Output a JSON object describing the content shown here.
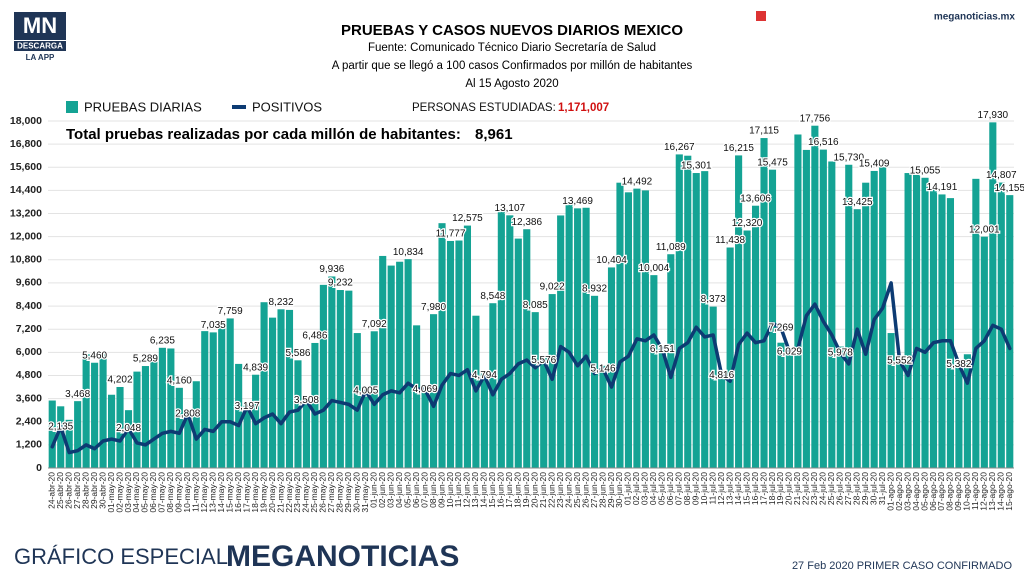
{
  "brand": {
    "logo": "MN",
    "download": "DESCARGA",
    "app": "LA APP",
    "site": "meganoticias.mx"
  },
  "footer": {
    "left": "GRÁFICO ESPECIAL",
    "brand": "MEGANOTICIAS",
    "note": "27 Feb 2020 PRIMER CASO CONFIRMADO"
  },
  "chart_data": {
    "type": "bar_line",
    "title": "PRUEBAS Y CASOS NUEVOS DIARIOS MEXICO",
    "subtitle": [
      "Fuente: Comunicado Técnico Diario Secretaría de Salud",
      "A partir que se llegó a 100 casos Confirmados por millón de habitantes",
      "Al 15 Agosto 2020"
    ],
    "annotations": {
      "studied_label": "PERSONAS ESTUDIADAS:",
      "studied_value": "1,171,007",
      "per_million_label": "Total pruebas realizadas por cada millón de habitantes:",
      "per_million_value": "8,961"
    },
    "categories": [
      "24-abr-20",
      "25-abr-20",
      "26-abr-20",
      "27-abr-20",
      "28-abr-20",
      "29-abr-20",
      "30-abr-20",
      "01-may-20",
      "02-may-20",
      "03-may-20",
      "04-may-20",
      "05-may-20",
      "06-may-20",
      "07-may-20",
      "08-may-20",
      "09-may-20",
      "10-may-20",
      "11-may-20",
      "12-may-20",
      "13-may-20",
      "14-may-20",
      "15-may-20",
      "16-may-20",
      "17-may-20",
      "18-may-20",
      "19-may-20",
      "20-may-20",
      "21-may-20",
      "22-may-20",
      "23-may-20",
      "24-may-20",
      "25-may-20",
      "26-may-20",
      "27-may-20",
      "28-may-20",
      "29-may-20",
      "30-may-20",
      "31-may-20",
      "01-jun-20",
      "02-jun-20",
      "03-jun-20",
      "04-jun-20",
      "05-jun-20",
      "06-jun-20",
      "07-jun-20",
      "08-jun-20",
      "09-jun-20",
      "10-jun-20",
      "11-jun-20",
      "12-jun-20",
      "13-jun-20",
      "14-jun-20",
      "15-jun-20",
      "16-jun-20",
      "17-jun-20",
      "18-jun-20",
      "19-jun-20",
      "20-jun-20",
      "21-jun-20",
      "22-jun-20",
      "23-jun-20",
      "24-jun-20",
      "25-jun-20",
      "26-jun-20",
      "27-jun-20",
      "28-jun-20",
      "29-jun-20",
      "30-jun-20",
      "01-jul-20",
      "02-jul-20",
      "03-jul-20",
      "04-jul-20",
      "05-jul-20",
      "06-jul-20",
      "07-jul-20",
      "08-jul-20",
      "09-jul-20",
      "10-jul-20",
      "11-jul-20",
      "12-jul-20",
      "13-jul-20",
      "14-jul-20",
      "15-jul-20",
      "16-jul-20",
      "17-jul-20",
      "18-jul-20",
      "19-jul-20",
      "20-jul-20",
      "21-jul-20",
      "22-jul-20",
      "23-jul-20",
      "24-jul-20",
      "25-jul-20",
      "26-jul-20",
      "27-jul-20",
      "28-jul-20",
      "29-jul-20",
      "30-jul-20",
      "31-jul-20",
      "01-ago-20",
      "02-ago-20",
      "03-ago-20",
      "04-ago-20",
      "05-ago-20",
      "06-ago-20",
      "07-ago-20",
      "08-ago-20",
      "09-ago-20",
      "10-ago-20",
      "11-ago-20",
      "12-ago-20",
      "13-ago-20",
      "14-ago-20",
      "15-ago-20"
    ],
    "series": [
      {
        "name": "PRUEBAS DIARIAS",
        "kind": "bar",
        "color": "#14a394",
        "values": [
          3500,
          3200,
          2500,
          3468,
          5900,
          5460,
          5900,
          3800,
          4202,
          3000,
          5000,
          5289,
          5800,
          6235,
          6200,
          4160,
          3000,
          4500,
          7100,
          7035,
          7300,
          7759,
          5400,
          3300,
          4839,
          8600,
          7800,
          8232,
          8200,
          5586,
          3300,
          6486,
          9500,
          9936,
          9232,
          9200,
          7000,
          3700,
          7092,
          11000,
          10500,
          10700,
          10834,
          7400,
          4300,
          7980,
          12700,
          11777,
          11800,
          12575,
          7900,
          4900,
          8548,
          13300,
          13107,
          11900,
          12386,
          8085,
          5700,
          9022,
          13100,
          13700,
          13469,
          13500,
          8932,
          5300,
          10404,
          14800,
          14300,
          14492,
          14400,
          10004,
          6300,
          11089,
          16267,
          16200,
          15301,
          15400,
          8373,
          5000,
          11438,
          16215,
          12320,
          13606,
          17115,
          15475,
          6500,
          6200,
          17300,
          16500,
          17756,
          16516,
          15900,
          6300,
          15730,
          13425,
          14800,
          15409,
          15600,
          7000,
          5700,
          15300,
          15200,
          15055,
          14500,
          14191,
          14000,
          5400,
          5900,
          15000,
          12001,
          17930,
          14807,
          14155
        ],
        "value_labels": [
          null,
          null,
          null,
          "3,468",
          null,
          "5,460",
          null,
          null,
          "4,202",
          null,
          null,
          "5,289",
          null,
          "6,235",
          null,
          "4,160",
          null,
          null,
          null,
          "7,035",
          null,
          "7,759",
          null,
          null,
          "4,839",
          null,
          null,
          "8,232",
          null,
          "5,586",
          null,
          "6,486",
          null,
          "9,936",
          "9,232",
          null,
          null,
          null,
          "7,092",
          null,
          null,
          null,
          "10,834",
          null,
          null,
          "7,980",
          null,
          "11,777",
          null,
          "12,575",
          null,
          null,
          "8,548",
          null,
          "13,107",
          null,
          "12,386",
          "8,085",
          null,
          "9,022",
          null,
          null,
          "13,469",
          null,
          "8,932",
          null,
          "10,404",
          null,
          null,
          "14,492",
          null,
          "10,004",
          null,
          "11,089",
          "16,267",
          null,
          "15,301",
          null,
          "8,373",
          null,
          "11,438",
          "16,215",
          "12,320",
          "13,606",
          "17,115",
          "15,475",
          null,
          null,
          null,
          null,
          "17,756",
          "16,516",
          null,
          null,
          "15,730",
          "13,425",
          null,
          "15,409",
          null,
          null,
          null,
          null,
          null,
          "15,055",
          null,
          "14,191",
          null,
          null,
          null,
          null,
          "12,001",
          "17,930",
          "14,807",
          "14,155"
        ]
      },
      {
        "name": "POSITIVOS",
        "kind": "line",
        "color": "#0d3b73",
        "values": [
          1100,
          2135,
          800,
          900,
          1200,
          1000,
          1400,
          1500,
          1400,
          2048,
          1300,
          1200,
          1500,
          1800,
          1900,
          1800,
          2808,
          1500,
          2000,
          1900,
          2400,
          2400,
          2200,
          3197,
          2300,
          2600,
          2800,
          2300,
          2900,
          3000,
          3508,
          2800,
          3000,
          3500,
          3400,
          3300,
          3000,
          4005,
          3300,
          3800,
          4000,
          3900,
          4400,
          4100,
          4069,
          3200,
          4300,
          4900,
          4800,
          5100,
          4000,
          4794,
          3800,
          4600,
          4900,
          5400,
          5600,
          5200,
          5576,
          4600,
          6300,
          6000,
          5300,
          5800,
          4900,
          5146,
          4200,
          5500,
          5800,
          6700,
          6600,
          6900,
          6151,
          4700,
          6200,
          6500,
          7300,
          6800,
          6900,
          4816,
          4500,
          6400,
          7000,
          6500,
          6600,
          7500,
          7269,
          6029,
          6200,
          7900,
          8500,
          7600,
          6900,
          5978,
          5400,
          7200,
          5900,
          7700,
          8300,
          9600,
          5552,
          4800,
          6200,
          6000,
          6500,
          6600,
          6600,
          5382,
          4400,
          6200,
          6600,
          7400,
          7200,
          6200
        ],
        "value_labels": [
          null,
          "2,135",
          null,
          null,
          null,
          null,
          null,
          null,
          null,
          "2,048",
          null,
          null,
          null,
          null,
          null,
          null,
          "2,808",
          null,
          null,
          null,
          null,
          null,
          null,
          "3,197",
          null,
          null,
          null,
          null,
          null,
          null,
          "3,508",
          null,
          null,
          null,
          null,
          null,
          null,
          "4,005",
          null,
          null,
          null,
          null,
          null,
          null,
          "4,069",
          null,
          null,
          null,
          null,
          null,
          null,
          "4,794",
          null,
          null,
          null,
          null,
          null,
          null,
          "5,576",
          null,
          null,
          null,
          null,
          null,
          null,
          "5,146",
          null,
          null,
          null,
          null,
          null,
          null,
          "6,151",
          null,
          null,
          null,
          null,
          null,
          null,
          "4,816",
          null,
          null,
          null,
          null,
          null,
          null,
          "7,269",
          "6,029",
          null,
          null,
          null,
          null,
          null,
          "5,978",
          null,
          null,
          null,
          null,
          null,
          null,
          "5,552",
          null,
          null,
          null,
          null,
          null,
          null,
          "5,382",
          null,
          null,
          null,
          null,
          null,
          null
        ]
      }
    ],
    "ylim": [
      0,
      18000
    ],
    "yticks": [
      0,
      {
        "value": 1200,
        "label": "1,200"
      },
      {
        "value": 2400,
        "label": "2,400"
      },
      {
        "value": 3600,
        "label": "3,600"
      },
      {
        "value": 4800,
        "label": "4,800"
      },
      {
        "value": 6000,
        "label": "6,000"
      },
      {
        "value": 7200,
        "label": "7,200"
      },
      {
        "value": 8400,
        "label": "8,400"
      },
      {
        "value": 9600,
        "label": "9,600"
      },
      {
        "value": 10800,
        "label": "10,800"
      },
      {
        "value": 12000,
        "label": "12,000"
      },
      {
        "value": 13200,
        "label": "13,200"
      },
      {
        "value": 14400,
        "label": "14,400"
      },
      {
        "value": 15600,
        "label": "15,600"
      },
      {
        "value": 16800,
        "label": "16,800"
      },
      {
        "value": 18000,
        "label": "18,000"
      }
    ],
    "grid": true
  }
}
